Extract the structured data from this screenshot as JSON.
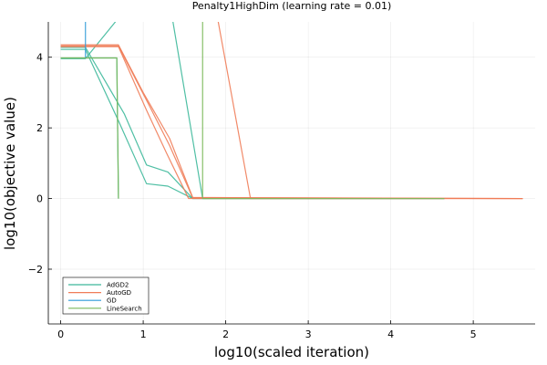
{
  "chart_data": {
    "type": "line",
    "title": "Penalty1HighDim (learning rate = 0.01)",
    "xlabel": "log10(scaled iteration)",
    "ylabel": "log10(objective value)",
    "xlim": [
      -0.15,
      5.75
    ],
    "ylim": [
      -3.55,
      5.0
    ],
    "xticks": [
      0,
      1,
      2,
      3,
      4,
      5
    ],
    "yticks": [
      -2,
      0,
      2,
      4
    ],
    "tick_labels_x": [
      "0",
      "1",
      "2",
      "3",
      "4",
      "5"
    ],
    "tick_labels_y": [
      "−2",
      "0",
      "2",
      "4"
    ],
    "grid": true,
    "legend_position": "bottom-left",
    "series": [
      {
        "name": "AdGD2",
        "color": "#3cb89a",
        "runs": [
          [
            [
              0,
              4.28
            ],
            [
              0.3,
              4.28
            ],
            [
              0.77,
              2.4
            ],
            [
              1.04,
              0.95
            ],
            [
              1.3,
              0.75
            ],
            [
              1.6,
              0.0
            ],
            [
              4.65,
              0.0
            ]
          ],
          [
            [
              0,
              4.22
            ],
            [
              0.3,
              4.22
            ],
            [
              0.7,
              2.2
            ],
            [
              1.04,
              0.42
            ],
            [
              1.3,
              0.35
            ],
            [
              1.6,
              0.0
            ],
            [
              4.65,
              0.0
            ]
          ],
          [
            [
              0,
              3.96
            ],
            [
              0.3,
              3.96
            ],
            [
              1.15,
              6.4
            ],
            [
              1.26,
              6.4
            ],
            [
              1.72,
              0.0
            ],
            [
              4.65,
              0.0
            ]
          ],
          [
            [
              0,
              3.98
            ],
            [
              0.3,
              3.98
            ],
            [
              0.68,
              3.98
            ],
            [
              0.7,
              0.0
            ]
          ]
        ]
      },
      {
        "name": "AutoGD",
        "color": "#f07c58",
        "runs": [
          [
            [
              0,
              4.32
            ],
            [
              0.3,
              4.32
            ],
            [
              0.7,
              4.32
            ],
            [
              1.08,
              2.6
            ],
            [
              1.32,
              1.5
            ],
            [
              1.6,
              0.02
            ],
            [
              5.6,
              0.0
            ]
          ],
          [
            [
              0,
              4.35
            ],
            [
              0.3,
              4.35
            ],
            [
              0.7,
              4.35
            ],
            [
              1.0,
              3.0
            ],
            [
              1.32,
              1.7
            ],
            [
              1.6,
              0.03
            ],
            [
              5.6,
              0.0
            ]
          ],
          [
            [
              0,
              4.3
            ],
            [
              0.3,
              4.3
            ],
            [
              0.7,
              4.3
            ],
            [
              1.04,
              2.5
            ],
            [
              1.28,
              1.3
            ],
            [
              1.55,
              0.0
            ],
            [
              5.6,
              0.0
            ]
          ],
          [
            [
              1.8,
              6.4
            ],
            [
              2.3,
              0.0
            ],
            [
              5.6,
              0.0
            ]
          ]
        ]
      },
      {
        "name": "GD",
        "color": "#2e9ad8",
        "runs": [
          [
            [
              0.3,
              3.96
            ],
            [
              0.3,
              5.1
            ]
          ]
        ]
      },
      {
        "name": "LineSearch",
        "color": "#7ab85a",
        "runs": [
          [
            [
              0,
              3.98
            ],
            [
              0.68,
              3.98
            ],
            [
              0.7,
              0.0
            ]
          ],
          [
            [
              1.72,
              0.0
            ],
            [
              1.72,
              5.1
            ]
          ],
          [
            [
              1.72,
              0.0
            ],
            [
              4.65,
              0.0
            ]
          ]
        ]
      }
    ]
  }
}
